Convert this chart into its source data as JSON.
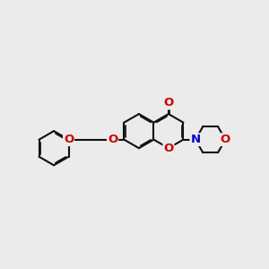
{
  "background_color": "#ebebeb",
  "bond_color": "#111111",
  "atom_colors": {
    "O": "#cc0000",
    "N": "#0000cc"
  },
  "bond_lw": 1.5,
  "font_size": 9.5,
  "fig_width": 3.0,
  "fig_height": 3.0,
  "dpi": 100,
  "xlim": [
    -4.5,
    5.5
  ],
  "ylim": [
    -2.5,
    2.8
  ]
}
